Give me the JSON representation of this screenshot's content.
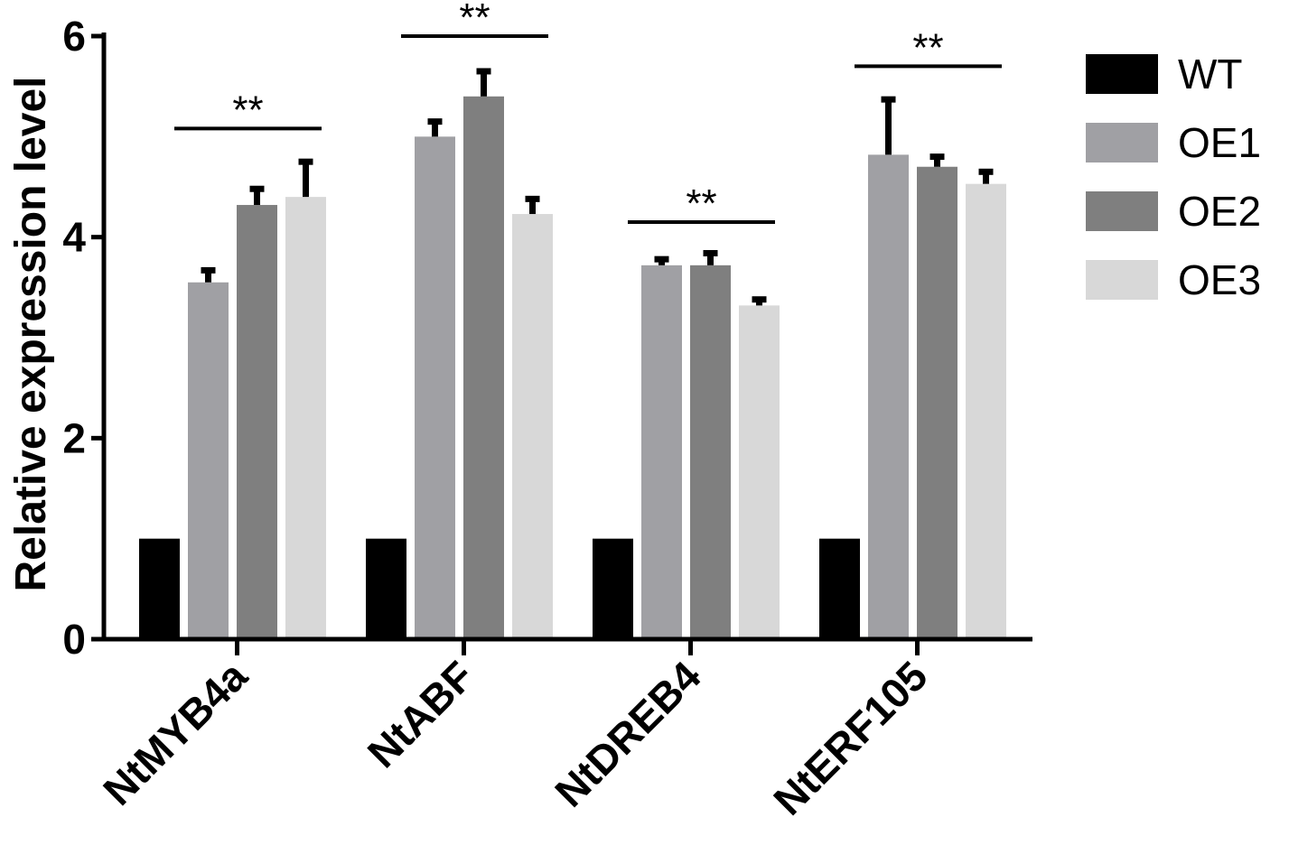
{
  "chart_data": {
    "type": "bar",
    "title": "",
    "xlabel": "",
    "ylabel": "Relative expression level",
    "ylim": [
      0,
      6
    ],
    "yticks": [
      0,
      2,
      4,
      6
    ],
    "categories": [
      "NtMYB4a",
      "NtABF",
      "NtDREB4",
      "NtERF105"
    ],
    "series": [
      {
        "name": "WT",
        "color": "#000000",
        "values": [
          1.0,
          1.0,
          1.0,
          1.0
        ],
        "errors": [
          0,
          0,
          0,
          0
        ]
      },
      {
        "name": "OE1",
        "color": "#a0a0a4",
        "values": [
          3.55,
          5.0,
          3.72,
          4.82
        ],
        "errors": [
          0.12,
          0.15,
          0.06,
          0.55
        ]
      },
      {
        "name": "OE2",
        "color": "#7f7f7f",
        "values": [
          4.32,
          5.4,
          3.72,
          4.7
        ],
        "errors": [
          0.16,
          0.25,
          0.12,
          0.1
        ]
      },
      {
        "name": "OE3",
        "color": "#d8d8d8",
        "values": [
          4.4,
          4.23,
          3.32,
          4.53
        ],
        "errors": [
          0.35,
          0.15,
          0.06,
          0.12
        ]
      }
    ],
    "annotations": [
      {
        "category": "NtMYB4a",
        "text": "**",
        "y": 5.08
      },
      {
        "category": "NtABF",
        "text": "**",
        "y": 6.0
      },
      {
        "category": "NtDREB4",
        "text": "**",
        "y": 4.15
      },
      {
        "category": "NtERF105",
        "text": "**",
        "y": 5.7
      }
    ],
    "legend_position": "right",
    "grid": false
  }
}
